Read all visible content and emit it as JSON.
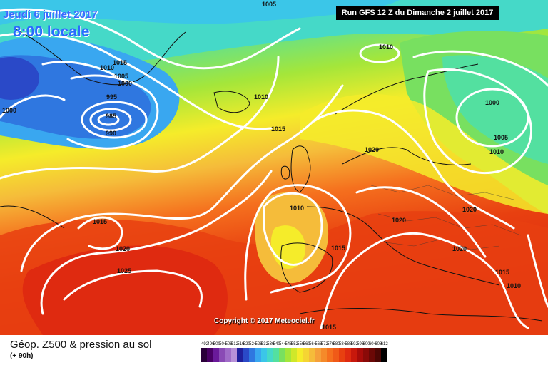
{
  "header": {
    "date_label": "Jeudi 6 juillet 2017",
    "time_label": "8:00 locale",
    "run_label": "Run GFS 12 Z du Dimanche 2 juillet 2017"
  },
  "copyright": "Copyright © 2017 Meteociel.fr",
  "legend": {
    "title": "Géop. Z500 & pression au sol",
    "subtitle": "(+ 90h)",
    "values": [
      "492",
      "496",
      "500",
      "504",
      "508",
      "512",
      "516",
      "520",
      "524",
      "528",
      "532",
      "536",
      "540",
      "544",
      "548",
      "552",
      "556",
      "560",
      "564",
      "568",
      "572",
      "576",
      "580",
      "584",
      "588",
      "592",
      "596",
      "600",
      "604",
      "608",
      "612"
    ],
    "colors": [
      "#2a003a",
      "#4a0066",
      "#6a1a9a",
      "#8a4ab5",
      "#a06cc8",
      "#b890d8",
      "#1f1f9c",
      "#2a49c8",
      "#2f77e0",
      "#39a7f0",
      "#3bc6e8",
      "#45d9c8",
      "#53e0a0",
      "#78e060",
      "#a4e63a",
      "#cfe82a",
      "#f5ec2a",
      "#f5d533",
      "#f5bc3a",
      "#f5a03a",
      "#f58a2a",
      "#f5701e",
      "#f05a18",
      "#e84010",
      "#df2a10",
      "#c8180c",
      "#a80c0a",
      "#8a0a08",
      "#6b0806",
      "#4c0604",
      "#000000"
    ]
  },
  "isobars": [
    {
      "label": "1005",
      "key": "a"
    },
    {
      "label": "1010",
      "key": "b"
    },
    {
      "label": "1015",
      "key": "c"
    },
    {
      "label": "1010",
      "key": "d"
    },
    {
      "label": "1005",
      "key": "e"
    },
    {
      "label": "1000",
      "key": "f"
    },
    {
      "label": "995",
      "key": "g"
    },
    {
      "label": "985",
      "key": "h"
    },
    {
      "label": "990",
      "key": "i"
    },
    {
      "label": "1000",
      "key": "j"
    },
    {
      "label": "1010",
      "key": "k"
    },
    {
      "label": "1015",
      "key": "l"
    },
    {
      "label": "1020",
      "key": "m"
    },
    {
      "label": "1000",
      "key": "n"
    },
    {
      "label": "1005",
      "key": "o"
    },
    {
      "label": "1010",
      "key": "p"
    },
    {
      "label": "1020",
      "key": "q"
    },
    {
      "label": "1010",
      "key": "r"
    },
    {
      "label": "1015",
      "key": "s"
    },
    {
      "label": "1020",
      "key": "t"
    },
    {
      "label": "1020",
      "key": "u"
    },
    {
      "label": "1015",
      "key": "v"
    },
    {
      "label": "1020",
      "key": "w"
    },
    {
      "label": "1025",
      "key": "x"
    },
    {
      "label": "1015",
      "key": "y"
    },
    {
      "label": "1010",
      "key": "z"
    },
    {
      "label": "1015",
      "key": "aa"
    }
  ]
}
